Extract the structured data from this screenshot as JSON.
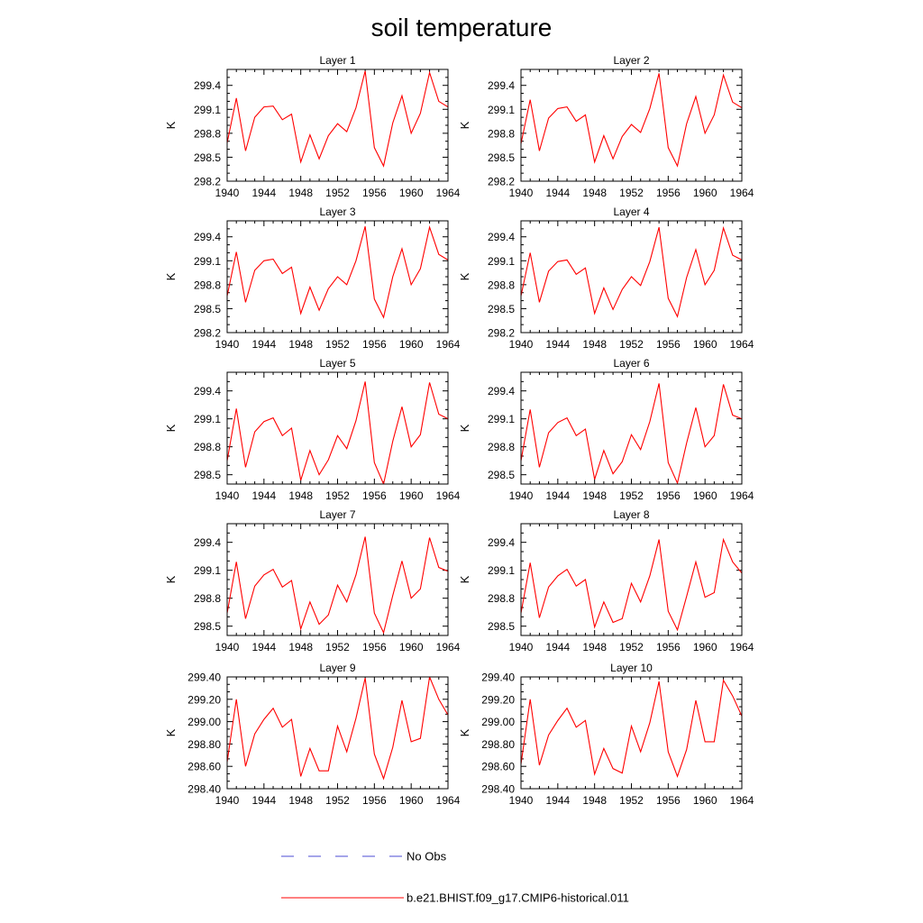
{
  "title": "soil temperature",
  "colors": {
    "model": "#ff0000",
    "obs": "#4b4bd6",
    "axis": "#000000"
  },
  "legend": {
    "obs_label": "No Obs",
    "model_label": "b.e21.BHIST.f09_g17.CMIP6-historical.011"
  },
  "chart_data": [
    {
      "type": "line",
      "title": "Layer 1",
      "xlabel": "",
      "ylabel": "K",
      "xlim": [
        1940,
        1964
      ],
      "ylim": [
        298.2,
        299.6
      ],
      "yticks": [
        298.2,
        298.5,
        298.8,
        299.1,
        299.4
      ],
      "ytick_labels": [
        "298.2",
        "298.5",
        "298.8",
        "299.1",
        "299.4"
      ],
      "xticks": [
        1940,
        1944,
        1948,
        1952,
        1956,
        1960,
        1964
      ],
      "x": [
        1940,
        1941,
        1942,
        1943,
        1944,
        1945,
        1946,
        1947,
        1948,
        1949,
        1950,
        1951,
        1952,
        1953,
        1954,
        1955,
        1956,
        1957,
        1958,
        1959,
        1960,
        1961,
        1962,
        1963,
        1964
      ],
      "series": [
        {
          "values": [
            298.68,
            299.24,
            298.58,
            299.0,
            299.13,
            299.14,
            298.97,
            299.04,
            298.44,
            298.78,
            298.48,
            298.77,
            298.92,
            298.82,
            299.12,
            299.58,
            298.62,
            298.39,
            298.93,
            299.27,
            298.8,
            299.05,
            299.56,
            299.2,
            299.13
          ]
        }
      ]
    },
    {
      "type": "line",
      "title": "Layer 2",
      "xlabel": "",
      "ylabel": "K",
      "xlim": [
        1940,
        1964
      ],
      "ylim": [
        298.2,
        299.6
      ],
      "yticks": [
        298.2,
        298.5,
        298.8,
        299.1,
        299.4
      ],
      "ytick_labels": [
        "298.2",
        "298.5",
        "298.8",
        "299.1",
        "299.4"
      ],
      "xticks": [
        1940,
        1944,
        1948,
        1952,
        1956,
        1960,
        1964
      ],
      "x": [
        1940,
        1941,
        1942,
        1943,
        1944,
        1945,
        1946,
        1947,
        1948,
        1949,
        1950,
        1951,
        1952,
        1953,
        1954,
        1955,
        1956,
        1957,
        1958,
        1959,
        1960,
        1961,
        1962,
        1963,
        1964
      ],
      "series": [
        {
          "values": [
            298.67,
            299.22,
            298.58,
            298.99,
            299.11,
            299.13,
            298.95,
            299.03,
            298.44,
            298.77,
            298.48,
            298.76,
            298.91,
            298.81,
            299.11,
            299.55,
            298.62,
            298.39,
            298.92,
            299.26,
            298.8,
            299.03,
            299.53,
            299.19,
            299.12
          ]
        }
      ]
    },
    {
      "type": "line",
      "title": "Layer 3",
      "xlabel": "",
      "ylabel": "K",
      "xlim": [
        1940,
        1964
      ],
      "ylim": [
        298.2,
        299.6
      ],
      "yticks": [
        298.2,
        298.5,
        298.8,
        299.1,
        299.4
      ],
      "ytick_labels": [
        "298.2",
        "298.5",
        "298.8",
        "299.1",
        "299.4"
      ],
      "xticks": [
        1940,
        1944,
        1948,
        1952,
        1956,
        1960,
        1964
      ],
      "x": [
        1940,
        1941,
        1942,
        1943,
        1944,
        1945,
        1946,
        1947,
        1948,
        1949,
        1950,
        1951,
        1952,
        1953,
        1954,
        1955,
        1956,
        1957,
        1958,
        1959,
        1960,
        1961,
        1962,
        1963,
        1964
      ],
      "series": [
        {
          "values": [
            298.66,
            299.21,
            298.58,
            298.98,
            299.1,
            299.12,
            298.94,
            299.02,
            298.44,
            298.77,
            298.48,
            298.75,
            298.9,
            298.8,
            299.1,
            299.53,
            298.62,
            298.39,
            298.9,
            299.25,
            298.8,
            299.0,
            299.52,
            299.18,
            299.11
          ]
        }
      ]
    },
    {
      "type": "line",
      "title": "Layer 4",
      "xlabel": "",
      "ylabel": "K",
      "xlim": [
        1940,
        1964
      ],
      "ylim": [
        298.2,
        299.6
      ],
      "yticks": [
        298.2,
        298.5,
        298.8,
        299.1,
        299.4
      ],
      "ytick_labels": [
        "298.2",
        "298.5",
        "298.8",
        "299.1",
        "299.4"
      ],
      "xticks": [
        1940,
        1944,
        1948,
        1952,
        1956,
        1960,
        1964
      ],
      "x": [
        1940,
        1941,
        1942,
        1943,
        1944,
        1945,
        1946,
        1947,
        1948,
        1949,
        1950,
        1951,
        1952,
        1953,
        1954,
        1955,
        1956,
        1957,
        1958,
        1959,
        1960,
        1961,
        1962,
        1963,
        1964
      ],
      "series": [
        {
          "values": [
            298.66,
            299.2,
            298.58,
            298.97,
            299.09,
            299.11,
            298.93,
            299.01,
            298.44,
            298.76,
            298.49,
            298.74,
            298.9,
            298.79,
            299.09,
            299.52,
            298.63,
            298.4,
            298.89,
            299.24,
            298.8,
            298.98,
            299.51,
            299.17,
            299.11
          ]
        }
      ]
    },
    {
      "type": "line",
      "title": "Layer 5",
      "xlabel": "",
      "ylabel": "K",
      "xlim": [
        1940,
        1964
      ],
      "ylim": [
        298.4,
        299.6
      ],
      "yticks": [
        298.5,
        298.8,
        299.1,
        299.4
      ],
      "ytick_labels": [
        "298.5",
        "298.8",
        "299.1",
        "299.4"
      ],
      "xticks": [
        1940,
        1944,
        1948,
        1952,
        1956,
        1960,
        1964
      ],
      "x": [
        1940,
        1941,
        1942,
        1943,
        1944,
        1945,
        1946,
        1947,
        1948,
        1949,
        1950,
        1951,
        1952,
        1953,
        1954,
        1955,
        1956,
        1957,
        1958,
        1959,
        1960,
        1961,
        1962,
        1963,
        1964
      ],
      "series": [
        {
          "values": [
            298.65,
            299.21,
            298.58,
            298.96,
            299.07,
            299.11,
            298.92,
            299.0,
            298.44,
            298.76,
            298.5,
            298.66,
            298.92,
            298.78,
            299.08,
            299.5,
            298.63,
            298.4,
            298.86,
            299.23,
            298.8,
            298.93,
            299.49,
            299.15,
            299.1
          ]
        }
      ]
    },
    {
      "type": "line",
      "title": "Layer 6",
      "xlabel": "",
      "ylabel": "K",
      "xlim": [
        1940,
        1964
      ],
      "ylim": [
        298.4,
        299.6
      ],
      "yticks": [
        298.5,
        298.8,
        299.1,
        299.4
      ],
      "ytick_labels": [
        "298.5",
        "298.8",
        "299.1",
        "299.4"
      ],
      "xticks": [
        1940,
        1944,
        1948,
        1952,
        1956,
        1960,
        1964
      ],
      "x": [
        1940,
        1941,
        1942,
        1943,
        1944,
        1945,
        1946,
        1947,
        1948,
        1949,
        1950,
        1951,
        1952,
        1953,
        1954,
        1955,
        1956,
        1957,
        1958,
        1959,
        1960,
        1961,
        1962,
        1963,
        1964
      ],
      "series": [
        {
          "values": [
            298.65,
            299.2,
            298.58,
            298.95,
            299.06,
            299.11,
            298.92,
            298.99,
            298.45,
            298.76,
            298.51,
            298.64,
            298.93,
            298.77,
            299.07,
            299.48,
            298.63,
            298.41,
            298.84,
            299.22,
            298.8,
            298.92,
            299.47,
            299.14,
            299.1
          ]
        }
      ]
    },
    {
      "type": "line",
      "title": "Layer 7",
      "xlabel": "",
      "ylabel": "K",
      "xlim": [
        1940,
        1964
      ],
      "ylim": [
        298.4,
        299.6
      ],
      "yticks": [
        298.5,
        298.8,
        299.1,
        299.4
      ],
      "ytick_labels": [
        "298.5",
        "298.8",
        "299.1",
        "299.4"
      ],
      "xticks": [
        1940,
        1944,
        1948,
        1952,
        1956,
        1960,
        1964
      ],
      "x": [
        1940,
        1941,
        1942,
        1943,
        1944,
        1945,
        1946,
        1947,
        1948,
        1949,
        1950,
        1951,
        1952,
        1953,
        1954,
        1955,
        1956,
        1957,
        1958,
        1959,
        1960,
        1961,
        1962,
        1963,
        1964
      ],
      "series": [
        {
          "values": [
            298.64,
            299.19,
            298.58,
            298.93,
            299.05,
            299.11,
            298.92,
            298.99,
            298.47,
            298.76,
            298.52,
            298.62,
            298.94,
            298.76,
            299.05,
            299.46,
            298.64,
            298.43,
            298.83,
            299.2,
            298.8,
            298.9,
            299.45,
            299.13,
            299.09
          ]
        }
      ]
    },
    {
      "type": "line",
      "title": "Layer 8",
      "xlabel": "",
      "ylabel": "K",
      "xlim": [
        1940,
        1964
      ],
      "ylim": [
        298.4,
        299.6
      ],
      "yticks": [
        298.5,
        298.8,
        299.1,
        299.4
      ],
      "ytick_labels": [
        "298.5",
        "298.8",
        "299.1",
        "299.4"
      ],
      "xticks": [
        1940,
        1944,
        1948,
        1952,
        1956,
        1960,
        1964
      ],
      "x": [
        1940,
        1941,
        1942,
        1943,
        1944,
        1945,
        1946,
        1947,
        1948,
        1949,
        1950,
        1951,
        1952,
        1953,
        1954,
        1955,
        1956,
        1957,
        1958,
        1959,
        1960,
        1961,
        1962,
        1963,
        1964
      ],
      "series": [
        {
          "values": [
            298.64,
            299.18,
            298.59,
            298.92,
            299.04,
            299.11,
            298.93,
            299.0,
            298.49,
            298.76,
            298.54,
            298.58,
            298.96,
            298.76,
            299.04,
            299.43,
            298.66,
            298.46,
            298.82,
            299.19,
            298.81,
            298.86,
            299.43,
            299.19,
            299.07
          ]
        }
      ]
    },
    {
      "type": "line",
      "title": "Layer 9",
      "xlabel": "",
      "ylabel": "K",
      "xlim": [
        1940,
        1964
      ],
      "ylim": [
        298.4,
        299.4
      ],
      "yticks": [
        298.4,
        298.6,
        298.8,
        299.0,
        299.2,
        299.4
      ],
      "ytick_labels": [
        "298.40",
        "298.60",
        "298.80",
        "299.00",
        "299.20",
        "299.40"
      ],
      "xticks": [
        1940,
        1944,
        1948,
        1952,
        1956,
        1960,
        1964
      ],
      "x": [
        1940,
        1941,
        1942,
        1943,
        1944,
        1945,
        1946,
        1947,
        1948,
        1949,
        1950,
        1951,
        1952,
        1953,
        1954,
        1955,
        1956,
        1957,
        1958,
        1959,
        1960,
        1961,
        1962,
        1963,
        1964
      ],
      "series": [
        {
          "values": [
            298.64,
            299.2,
            298.6,
            298.89,
            299.02,
            299.12,
            298.95,
            299.02,
            298.51,
            298.76,
            298.56,
            298.56,
            298.96,
            298.73,
            299.03,
            299.39,
            298.71,
            298.49,
            298.77,
            299.19,
            298.82,
            298.85,
            299.4,
            299.2,
            299.06
          ]
        }
      ]
    },
    {
      "type": "line",
      "title": "Layer 10",
      "xlabel": "",
      "ylabel": "K",
      "xlim": [
        1940,
        1964
      ],
      "ylim": [
        298.4,
        299.4
      ],
      "yticks": [
        298.4,
        298.6,
        298.8,
        299.0,
        299.2,
        299.4
      ],
      "ytick_labels": [
        "298.40",
        "298.60",
        "298.80",
        "299.00",
        "299.20",
        "299.40"
      ],
      "xticks": [
        1940,
        1944,
        1948,
        1952,
        1956,
        1960,
        1964
      ],
      "x": [
        1940,
        1941,
        1942,
        1943,
        1944,
        1945,
        1946,
        1947,
        1948,
        1949,
        1950,
        1951,
        1952,
        1953,
        1954,
        1955,
        1956,
        1957,
        1958,
        1959,
        1960,
        1961,
        1962,
        1963,
        1964
      ],
      "series": [
        {
          "values": [
            298.62,
            299.2,
            298.61,
            298.88,
            299.01,
            299.12,
            298.95,
            299.01,
            298.53,
            298.76,
            298.58,
            298.54,
            298.96,
            298.73,
            298.99,
            299.36,
            298.73,
            298.51,
            298.75,
            299.19,
            298.82,
            298.82,
            299.37,
            299.23,
            299.05
          ]
        }
      ]
    }
  ]
}
